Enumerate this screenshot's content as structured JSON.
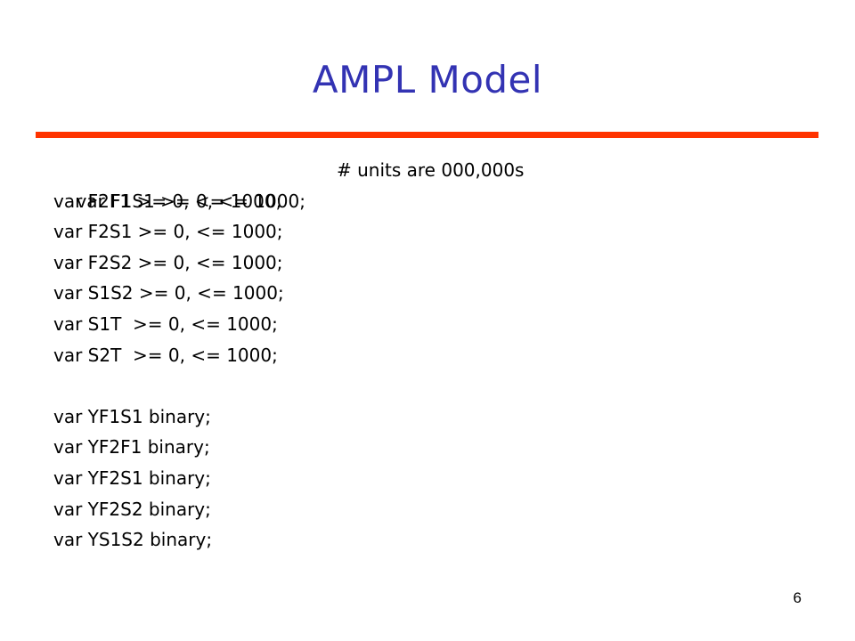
{
  "slide": {
    "title": "AMPL Model",
    "page_number": "6",
    "colors": {
      "title": "#3333b3",
      "rule": "#ff3300",
      "text": "#000000"
    }
  },
  "code": {
    "continuous_vars": [
      {
        "text": "var F1S1 >= 0, <= 1000;",
        "comment": "# units are 000,000s"
      },
      {
        "text": "var F2F1 >= 0, <= 1000;"
      },
      {
        "text": "var F2S1 >= 0, <= 1000;"
      },
      {
        "text": "var F2S2 >= 0, <= 1000;"
      },
      {
        "text": "var S1S2 >= 0, <= 1000;"
      },
      {
        "text": "var S1T  >= 0, <= 1000;"
      },
      {
        "text": "var S2T  >= 0, <= 1000;"
      }
    ],
    "binary_vars": [
      {
        "text": "var YF1S1 binary;"
      },
      {
        "text": "var YF2F1 binary;"
      },
      {
        "text": "var YF2S1 binary;"
      },
      {
        "text": "var YF2S2 binary;"
      },
      {
        "text": "var YS1S2 binary;"
      }
    ]
  }
}
